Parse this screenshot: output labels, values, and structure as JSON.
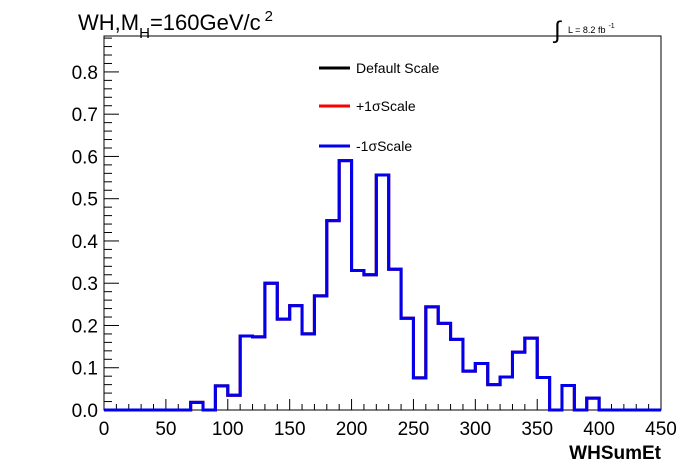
{
  "chart_data": {
    "type": "line",
    "title": "WH,M",
    "title_sub": "H",
    "title_rest": "=160GeV/c",
    "title_sup": "2",
    "lumi_integral": "∫",
    "lumi_text": "L = 8.2 fb",
    "lumi_sup": "-1",
    "xlabel": "WHSumEt",
    "ylabel": "",
    "xlim": [
      0,
      450
    ],
    "ylim": [
      0,
      0.885
    ],
    "x_ticks": [
      "0",
      "50",
      "100",
      "150",
      "200",
      "250",
      "300",
      "350",
      "400",
      "450"
    ],
    "y_ticks": [
      "0.0",
      "0.1",
      "0.2",
      "0.3",
      "0.4",
      "0.5",
      "0.6",
      "0.7",
      "0.8"
    ],
    "bin_width": 10,
    "bin_edges_start": 0,
    "grid": false,
    "legend_position": "top-center",
    "series": [
      {
        "name": "Default Scale",
        "color": "#000000",
        "values": [
          0,
          0,
          0,
          0,
          0,
          0,
          0,
          0.018,
          0,
          0.057,
          0.035,
          0.175,
          0.173,
          0.3,
          0.215,
          0.247,
          0.18,
          0.27,
          0.448,
          0.59,
          0.33,
          0.32,
          0.556,
          0.333,
          0.217,
          0.076,
          0.244,
          0.205,
          0.167,
          0.092,
          0.11,
          0.06,
          0.078,
          0.137,
          0.17,
          0.077,
          0,
          0.058,
          0,
          0.028,
          0,
          0,
          0,
          0,
          0
        ]
      },
      {
        "name": "+1σScale",
        "color": "#ff0000",
        "values": [
          0,
          0,
          0,
          0,
          0,
          0,
          0,
          0.018,
          0,
          0.057,
          0.035,
          0.175,
          0.173,
          0.3,
          0.215,
          0.247,
          0.18,
          0.27,
          0.448,
          0.59,
          0.33,
          0.32,
          0.556,
          0.333,
          0.217,
          0.076,
          0.244,
          0.205,
          0.167,
          0.092,
          0.11,
          0.06,
          0.078,
          0.137,
          0.17,
          0.077,
          0,
          0.058,
          0,
          0.028,
          0,
          0,
          0,
          0,
          0
        ]
      },
      {
        "name": "-1σScale",
        "color": "#0000ee",
        "values": [
          0,
          0,
          0,
          0,
          0,
          0,
          0,
          0.018,
          0,
          0.057,
          0.035,
          0.175,
          0.173,
          0.3,
          0.215,
          0.247,
          0.18,
          0.27,
          0.448,
          0.59,
          0.33,
          0.32,
          0.556,
          0.333,
          0.217,
          0.076,
          0.244,
          0.205,
          0.167,
          0.092,
          0.11,
          0.06,
          0.078,
          0.137,
          0.17,
          0.077,
          0,
          0.058,
          0,
          0.028,
          0,
          0,
          0,
          0,
          0
        ]
      }
    ]
  }
}
